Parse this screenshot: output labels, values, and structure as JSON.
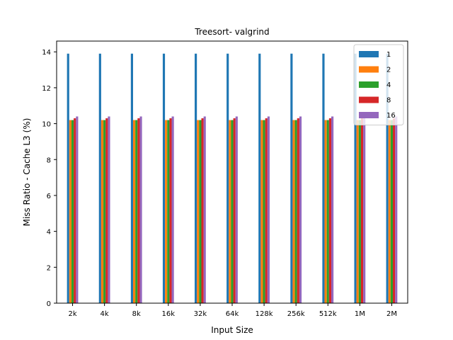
{
  "chart_data": {
    "type": "bar",
    "title": "Treesort- valgrind",
    "xlabel": "Input Size",
    "ylabel": "Miss Ratio - Cache L3 (%)",
    "categories": [
      "2k",
      "4k",
      "8k",
      "16k",
      "32k",
      "64k",
      "128k",
      "256k",
      "512k",
      "1M",
      "2M"
    ],
    "ylim": [
      0,
      14.6
    ],
    "yticks": [
      0,
      2,
      4,
      6,
      8,
      10,
      12,
      14
    ],
    "grid": false,
    "legend_position": "top-right",
    "series": [
      {
        "name": "1",
        "color": "#1f77b4",
        "values": [
          13.9,
          13.9,
          13.9,
          13.9,
          13.9,
          13.9,
          13.9,
          13.9,
          13.9,
          13.9,
          13.9
        ]
      },
      {
        "name": "2",
        "color": "#ff7f0e",
        "values": [
          10.2,
          10.2,
          10.2,
          10.2,
          10.2,
          10.2,
          10.2,
          10.2,
          10.2,
          10.2,
          10.2
        ]
      },
      {
        "name": "4",
        "color": "#2ca02c",
        "values": [
          10.2,
          10.2,
          10.2,
          10.2,
          10.2,
          10.2,
          10.2,
          10.2,
          10.2,
          10.2,
          10.2
        ]
      },
      {
        "name": "8",
        "color": "#d62728",
        "values": [
          10.3,
          10.3,
          10.3,
          10.3,
          10.3,
          10.3,
          10.3,
          10.3,
          10.3,
          10.3,
          10.3
        ]
      },
      {
        "name": "16",
        "color": "#9467bd",
        "values": [
          10.4,
          10.4,
          10.4,
          10.4,
          10.4,
          10.4,
          10.4,
          10.4,
          10.4,
          10.4,
          10.4
        ]
      }
    ]
  }
}
